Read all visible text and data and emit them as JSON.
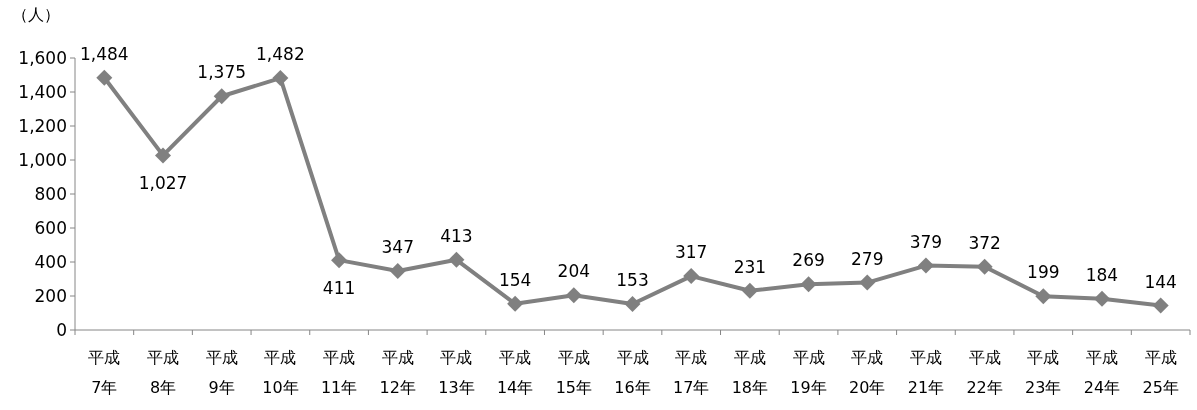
{
  "chart_data": {
    "type": "line",
    "ylabel": "（人）",
    "categories": [
      "平成\n7年",
      "平成\n8年",
      "平成\n9年",
      "平成\n10年",
      "平成\n11年",
      "平成\n12年",
      "平成\n13年",
      "平成\n14年",
      "平成\n15年",
      "平成\n16年",
      "平成\n17年",
      "平成\n18年",
      "平成\n19年",
      "平成\n20年",
      "平成\n21年",
      "平成\n22年",
      "平成\n23年",
      "平成\n24年",
      "平成\n25年"
    ],
    "values": [
      1484,
      1027,
      1375,
      1482,
      411,
      347,
      413,
      154,
      204,
      153,
      317,
      231,
      269,
      279,
      379,
      372,
      199,
      184,
      144
    ],
    "value_labels": [
      "1,484",
      "1,027",
      "1,375",
      "1,482",
      "411",
      "347",
      "413",
      "154",
      "204",
      "153",
      "317",
      "231",
      "269",
      "279",
      "379",
      "372",
      "199",
      "184",
      "144"
    ],
    "color": "#808080",
    "marker": "diamond",
    "line_style": "solid",
    "grid": false,
    "ylim": [
      0,
      1600
    ],
    "yticks": [
      0,
      200,
      400,
      600,
      800,
      {
        "value": 1000,
        "label": "1,000"
      },
      {
        "value": 1200,
        "label": "1,200"
      },
      {
        "value": 1400,
        "label": "1,400"
      },
      {
        "value": 1600,
        "label": "1,600"
      }
    ]
  }
}
